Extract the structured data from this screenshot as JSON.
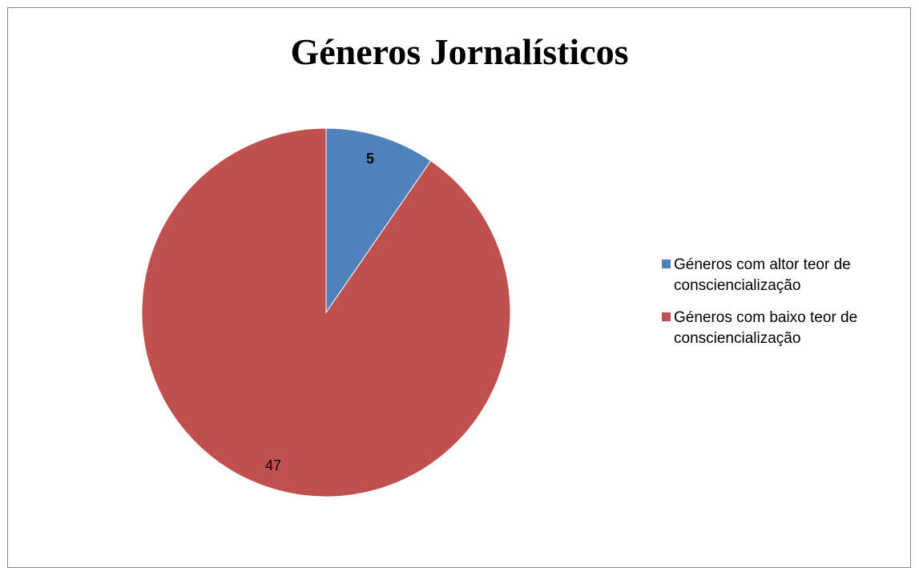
{
  "chart_data": {
    "type": "pie",
    "title": "Géneros Jornalísticos",
    "categories": [
      "Géneros com altor teor de consciencialização",
      "Géneros com baixo teor de consciencialização"
    ],
    "values": [
      5,
      47
    ],
    "colors": [
      "#4f81bd",
      "#c0504d"
    ],
    "data_labels": [
      "5",
      "47"
    ],
    "label_bold": [
      true,
      false
    ],
    "legend_position": "right"
  }
}
